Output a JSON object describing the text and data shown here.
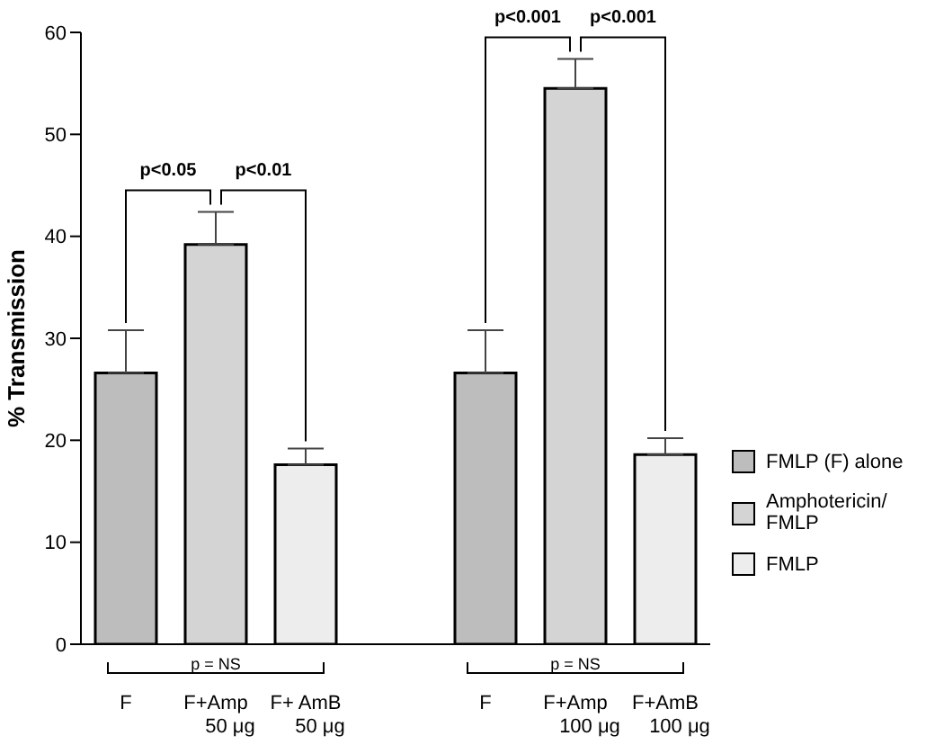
{
  "chart_data": {
    "type": "bar",
    "ylabel": "% Transmission",
    "categories": [
      "F",
      "F+Amp\n50 μg",
      "F+ AmB\n50 μg",
      null,
      "F",
      "F+Amp\n100 μg",
      "F+AmB\n100 μg"
    ],
    "series": [
      {
        "name": "FMLP (F) alone",
        "color": "#bdbdbd",
        "values": [
          26.6,
          null,
          null,
          null,
          26.6,
          null,
          null
        ],
        "errors": [
          [
            26.6,
            30.8
          ],
          null,
          null,
          null,
          [
            26.6,
            30.8
          ],
          null,
          null
        ]
      },
      {
        "name": "Amphotericin/ FMLP",
        "color": "#d4d4d4",
        "values": [
          null,
          39.2,
          null,
          null,
          null,
          54.5,
          null
        ],
        "errors": [
          null,
          [
            39.2,
            42.4
          ],
          null,
          null,
          null,
          [
            54.5,
            57.4
          ],
          null
        ]
      },
      {
        "name": "FMLP",
        "color": "#ededed",
        "values": [
          null,
          null,
          17.6,
          null,
          null,
          null,
          18.6
        ],
        "errors": [
          null,
          null,
          [
            17.6,
            19.2
          ],
          null,
          null,
          null,
          [
            18.6,
            20.2
          ]
        ]
      }
    ],
    "stacked": true,
    "ylim": [
      0,
      60
    ],
    "yticks": [
      0,
      10,
      20,
      30,
      40,
      50,
      60
    ],
    "grid": false,
    "legend": "right",
    "annotations": [
      "p<0.05",
      "p<0.01",
      "p = NS",
      "p<0.001",
      "p<0.001",
      "p = NS"
    ]
  }
}
